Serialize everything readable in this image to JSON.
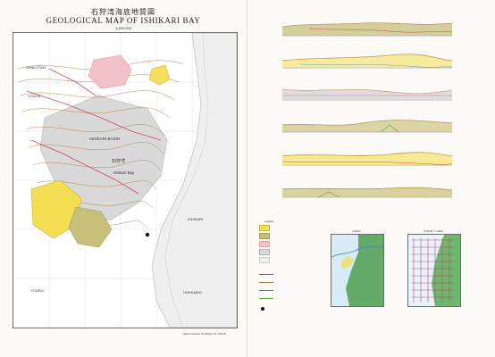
{
  "header": {
    "title_jp": "石狩湾海底地質図",
    "title_en": "GEOLOGICAL MAP OF ISHIKARI BAY",
    "scale": "1:200,000"
  },
  "map": {
    "labels": {
      "okushiri_ridge": "ISHIKARI BASIN",
      "ishikari_bay": "Ishikari Bay",
      "shakotan": "SHAKOTAN",
      "yoichi": "YOICHI",
      "otaru": "OTARU",
      "ishikari": "ISHIKARI",
      "rumoi_center": "石狩湾",
      "southern_label": "HOKKAIDO"
    }
  },
  "legend": {
    "title": "Legend"
  },
  "insets": {
    "left_title": "INDEX",
    "right_title": "SURVEY LINES"
  },
  "footer": {
    "agency": "GEOLOGICAL SURVEY OF JAPAN"
  },
  "colors": {
    "yellow": "#f4df53",
    "olive": "#c7c07b",
    "pink": "#f2c1c7",
    "gray": "#d9d9d9",
    "lightgray": "#eeeeee",
    "red": "#c63b5a",
    "brown": "#b07a3f",
    "blue": "#3d80c2",
    "green": "#56a33a"
  }
}
